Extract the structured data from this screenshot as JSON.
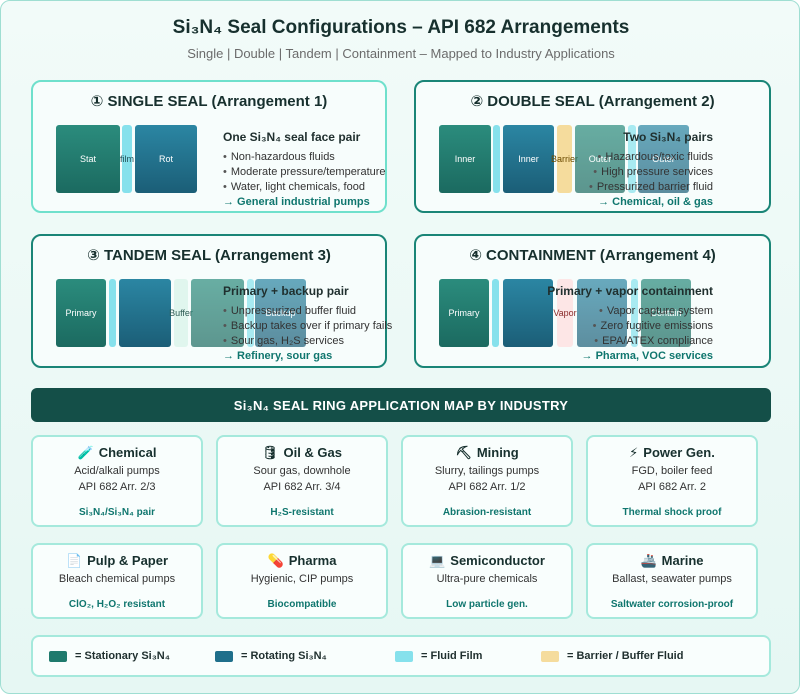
{
  "header": {
    "title": "Si₃N₄ Seal Configurations  –  API 682 Arrangements",
    "subtitle": "Single | Double | Tandem | Containment  –  Mapped to Industry Applications"
  },
  "arrangements": [
    {
      "title": "① SINGLE SEAL (Arrangement 1)",
      "blocks": [
        "Stat",
        "film",
        "Rot"
      ],
      "heading": "One Si₃N₄ seal face pair",
      "bullets": [
        "Non-hazardous fluids",
        "Moderate pressure/temperature",
        "Water, light chemicals, food"
      ],
      "application": "→ General industrial pumps"
    },
    {
      "title": "② DOUBLE SEAL (Arrangement 2)",
      "blocks": [
        "Inner",
        "Inner",
        "Barrier",
        "Outer",
        "Outer"
      ],
      "heading": "Two Si₃N₄ pairs",
      "bullets": [
        "Hazardous/toxic fluids",
        "High pressure services",
        "Pressurized barrier fluid"
      ],
      "application": "→ Chemical, oil & gas"
    },
    {
      "title": "③ TANDEM SEAL (Arrangement 3)",
      "blocks": [
        "Primary",
        "Buffer",
        "Backup"
      ],
      "heading": "Primary + backup pair",
      "bullets": [
        "Unpressurized buffer fluid",
        "Backup takes over if primary fails",
        "Sour gas, H₂S services"
      ],
      "application": "→ Refinery, sour gas"
    },
    {
      "title": "④ CONTAINMENT (Arrangement 4)",
      "blocks": [
        "Primary",
        "Vapor",
        "Contain"
      ],
      "heading": "Primary + vapor containment",
      "bullets": [
        "Vapor capture system",
        "Zero fugitive emissions",
        "EPA/ATEX compliance"
      ],
      "application": "→ Pharma, VOC services"
    }
  ],
  "map_title": "Si₃N₄ SEAL RING APPLICATION MAP BY INDUSTRY",
  "industries": [
    {
      "icon": "🧪",
      "name": "Chemical",
      "lines": [
        "Acid/alkali pumps",
        "API 682 Arr. 2/3"
      ],
      "tag": "Si₃N₄/Si₃N₄ pair"
    },
    {
      "icon": "🛢",
      "name": "Oil & Gas",
      "lines": [
        "Sour gas, downhole",
        "API 682 Arr. 3/4"
      ],
      "tag": "H₂S-resistant"
    },
    {
      "icon": "⛏",
      "name": "Mining",
      "lines": [
        "Slurry, tailings pumps",
        "API 682 Arr. 1/2"
      ],
      "tag": "Abrasion-resistant"
    },
    {
      "icon": "⚡",
      "name": "Power Gen.",
      "lines": [
        "FGD, boiler feed",
        "API 682 Arr. 2"
      ],
      "tag": "Thermal shock proof"
    },
    {
      "icon": "📄",
      "name": "Pulp & Paper",
      "lines": [
        "Bleach chemical pumps"
      ],
      "tag": "ClO₂, H₂O₂ resistant"
    },
    {
      "icon": "💊",
      "name": "Pharma",
      "lines": [
        "Hygienic, CIP pumps"
      ],
      "tag": "Biocompatible"
    },
    {
      "icon": "💻",
      "name": "Semiconductor",
      "lines": [
        "Ultra-pure chemicals"
      ],
      "tag": "Low particle gen."
    },
    {
      "icon": "🚢",
      "name": "Marine",
      "lines": [
        "Ballast, seawater pumps"
      ],
      "tag": "Saltwater corrosion-proof"
    }
  ],
  "legend": [
    {
      "label": "= Stationary Si₃N₄",
      "color": "#1f7a6d"
    },
    {
      "label": "= Rotating Si₃N₄",
      "color": "#1f6f8b"
    },
    {
      "label": "= Fluid Film",
      "color": "#86e1ec"
    },
    {
      "label": "= Barrier / Buffer Fluid",
      "color": "#f5dc9d"
    }
  ]
}
